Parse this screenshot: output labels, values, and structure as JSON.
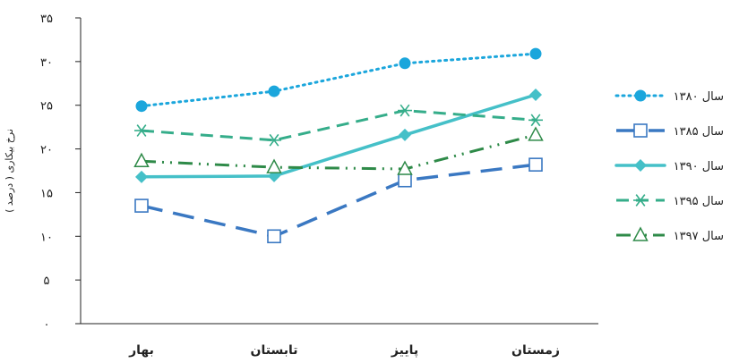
{
  "chart_data": {
    "type": "line",
    "ylabel": "نرخ بیکاری ( درصد )",
    "ylim": [
      0,
      35
    ],
    "yticks": [
      {
        "value": 0,
        "label": "۰"
      },
      {
        "value": 5,
        "label": "۵"
      },
      {
        "value": 10,
        "label": "۱۰"
      },
      {
        "value": 15,
        "label": "۱۵"
      },
      {
        "value": 20,
        "label": "۲۰"
      },
      {
        "value": 25,
        "label": "۲۵"
      },
      {
        "value": 30,
        "label": "۳۰"
      },
      {
        "value": 35,
        "label": "۳۵"
      }
    ],
    "categories": [
      "بهار",
      "تابستان",
      "پاییز",
      "زمستان"
    ],
    "grid": false,
    "legend_placement": "right",
    "series": [
      {
        "name": "سال ۱۳۸۰",
        "values": [
          24.9,
          26.6,
          29.8,
          30.9
        ],
        "color": "#1ba6dc",
        "dash": "dotted",
        "marker": "filled-circle"
      },
      {
        "name": "سال ۱۳۸۵",
        "values": [
          13.5,
          10.0,
          16.4,
          18.2
        ],
        "color": "#3a78c2",
        "dash": "long-dash",
        "marker": "open-square"
      },
      {
        "name": "سال ۱۳۹۰",
        "values": [
          16.8,
          16.9,
          21.6,
          26.2
        ],
        "color": "#45c0c8",
        "dash": "solid",
        "marker": "filled-diamond"
      },
      {
        "name": "سال ۱۳۹۵",
        "values": [
          22.1,
          21.0,
          24.4,
          23.3
        ],
        "color": "#35ad8a",
        "dash": "dashed",
        "marker": "asterisk"
      },
      {
        "name": "سال ۱۳۹۷",
        "values": [
          18.6,
          17.9,
          17.7,
          21.6
        ],
        "color": "#2e8a48",
        "dash": "dash-dot-dot",
        "marker": "open-triangle"
      }
    ]
  }
}
